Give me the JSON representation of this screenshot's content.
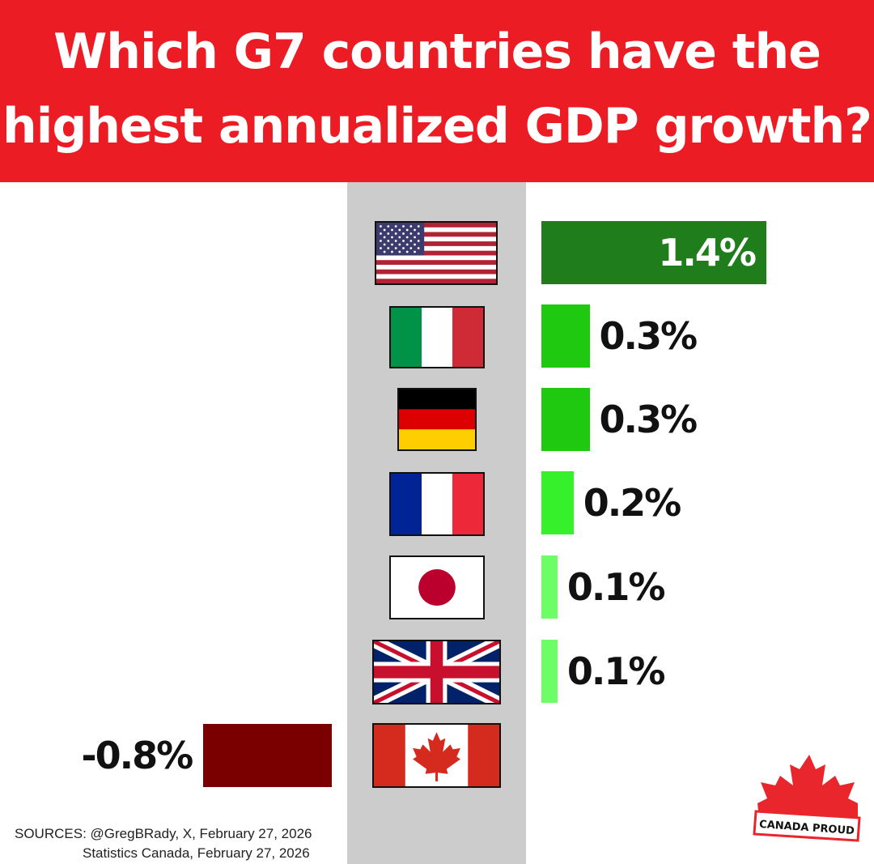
{
  "title": "Which G7 countries have the highest annualized GDP growth?",
  "chart_data": {
    "type": "bar",
    "orientation": "horizontal",
    "categories": [
      "United States",
      "Italy",
      "Germany",
      "France",
      "Japan",
      "United Kingdom",
      "Canada"
    ],
    "values": [
      1.4,
      0.3,
      0.3,
      0.2,
      0.1,
      0.1,
      -0.8
    ],
    "value_labels": [
      "1.4%",
      "0.3%",
      "0.3%",
      "0.2%",
      "0.1%",
      "0.1%",
      "-0.8%"
    ],
    "unit": "%",
    "bar_colors": [
      "#207d1c",
      "#1ec90f",
      "#1ec90f",
      "#35f02a",
      "#6dfd66",
      "#6dfd66",
      "#7a0000"
    ],
    "label_colors": [
      "#ffffff",
      "#111111",
      "#111111",
      "#111111",
      "#111111",
      "#111111",
      "#111111"
    ],
    "flag_icons": [
      "us-flag-icon",
      "italy-flag-icon",
      "germany-flag-icon",
      "france-flag-icon",
      "japan-flag-icon",
      "uk-flag-icon",
      "canada-flag-icon"
    ],
    "grid": false,
    "legend": "none"
  },
  "sources": {
    "line1": "SOURCES: @GregBRady, X, February 27, 2026",
    "line2": "Statistics Canada, February 27, 2026"
  },
  "logo": {
    "text": "CANADA PROUD"
  },
  "colors": {
    "banner": "#ec1c24",
    "band": "#cccccc",
    "logo_red": "#e8262c"
  }
}
